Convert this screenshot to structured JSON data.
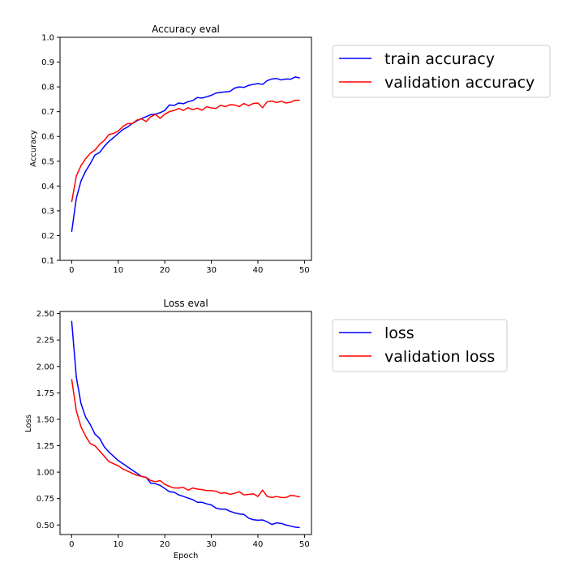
{
  "chart_data": [
    {
      "type": "line",
      "title": "Accuracy eval",
      "xlabel": "",
      "ylabel": "Accuracy",
      "xlim": [
        -2.5,
        51.5
      ],
      "ylim": [
        0.1,
        1.0
      ],
      "xticks": [
        0,
        10,
        20,
        30,
        40,
        50
      ],
      "yticks": [
        0.1,
        0.2,
        0.3,
        0.4,
        0.5,
        0.6,
        0.7,
        0.8,
        0.9,
        1.0
      ],
      "ytick_labels": [
        "0.1",
        "0.2",
        "0.3",
        "0.4",
        "0.5",
        "0.6",
        "0.7",
        "0.8",
        "0.9",
        "1.0"
      ],
      "grid": false,
      "legend_position": "right-outside-top",
      "series": [
        {
          "name": "train accuracy",
          "color": "#0000ff",
          "values": [
            0.215,
            0.35,
            0.42,
            0.46,
            0.49,
            0.525,
            0.535,
            0.56,
            0.58,
            0.595,
            0.612,
            0.628,
            0.638,
            0.652,
            0.663,
            0.672,
            0.68,
            0.688,
            0.69,
            0.696,
            0.705,
            0.727,
            0.725,
            0.735,
            0.732,
            0.74,
            0.745,
            0.757,
            0.755,
            0.76,
            0.766,
            0.775,
            0.778,
            0.78,
            0.782,
            0.795,
            0.8,
            0.798,
            0.806,
            0.81,
            0.813,
            0.81,
            0.825,
            0.832,
            0.834,
            0.828,
            0.832,
            0.831,
            0.84,
            0.836
          ]
        },
        {
          "name": "validation accuracy",
          "color": "#ff0000",
          "values": [
            0.335,
            0.44,
            0.482,
            0.51,
            0.532,
            0.545,
            0.568,
            0.584,
            0.608,
            0.612,
            0.622,
            0.64,
            0.652,
            0.652,
            0.666,
            0.671,
            0.66,
            0.68,
            0.689,
            0.673,
            0.69,
            0.7,
            0.705,
            0.713,
            0.705,
            0.716,
            0.708,
            0.714,
            0.706,
            0.72,
            0.715,
            0.713,
            0.726,
            0.72,
            0.728,
            0.727,
            0.721,
            0.733,
            0.724,
            0.733,
            0.735,
            0.716,
            0.74,
            0.743,
            0.737,
            0.742,
            0.735,
            0.738,
            0.746,
            0.746
          ]
        }
      ]
    },
    {
      "type": "line",
      "title": "Loss eval",
      "xlabel": "Epoch",
      "ylabel": "Loss",
      "xlim": [
        -2.5,
        51.5
      ],
      "ylim": [
        0.41,
        2.52
      ],
      "xticks": [
        0,
        10,
        20,
        30,
        40,
        50
      ],
      "yticks": [
        0.5,
        0.75,
        1.0,
        1.25,
        1.5,
        1.75,
        2.0,
        2.25,
        2.5
      ],
      "ytick_labels": [
        "0.50",
        "0.75",
        "1.00",
        "1.25",
        "1.50",
        "1.75",
        "2.00",
        "2.25",
        "2.50"
      ],
      "grid": false,
      "legend_position": "right-outside-top",
      "series": [
        {
          "name": "loss",
          "color": "#0000ff",
          "values": [
            2.43,
            1.9,
            1.65,
            1.52,
            1.45,
            1.36,
            1.32,
            1.24,
            1.19,
            1.15,
            1.11,
            1.08,
            1.05,
            1.02,
            0.99,
            0.96,
            0.95,
            0.895,
            0.89,
            0.875,
            0.845,
            0.815,
            0.81,
            0.785,
            0.77,
            0.755,
            0.74,
            0.715,
            0.715,
            0.7,
            0.69,
            0.66,
            0.65,
            0.65,
            0.63,
            0.615,
            0.605,
            0.6,
            0.565,
            0.55,
            0.545,
            0.548,
            0.53,
            0.505,
            0.52,
            0.515,
            0.5,
            0.49,
            0.48,
            0.475
          ]
        },
        {
          "name": "validation loss",
          "color": "#ff0000",
          "values": [
            1.88,
            1.58,
            1.43,
            1.34,
            1.27,
            1.25,
            1.2,
            1.15,
            1.1,
            1.08,
            1.06,
            1.03,
            1.01,
            0.99,
            0.97,
            0.96,
            0.95,
            0.92,
            0.91,
            0.92,
            0.885,
            0.865,
            0.85,
            0.85,
            0.855,
            0.83,
            0.85,
            0.84,
            0.835,
            0.825,
            0.825,
            0.82,
            0.8,
            0.805,
            0.79,
            0.8,
            0.815,
            0.785,
            0.79,
            0.795,
            0.77,
            0.83,
            0.77,
            0.76,
            0.77,
            0.76,
            0.76,
            0.78,
            0.775,
            0.765
          ]
        }
      ]
    }
  ]
}
